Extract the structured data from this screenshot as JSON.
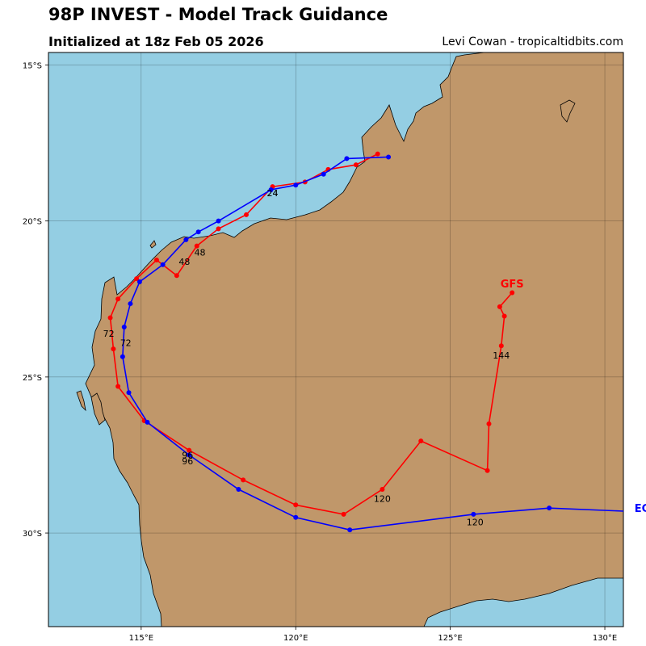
{
  "header": {
    "title": "98P INVEST - Model Track Guidance",
    "subtitle": "Initialized at 18z Feb 05 2026",
    "credit": "Levi Cowan - tropicaltidbits.com"
  },
  "colors": {
    "ocean": "#94CEE3",
    "land": "#C0976A",
    "coast": "#000000",
    "grid": "#000000"
  },
  "chart_data": {
    "type": "map",
    "lon_range": [
      112.0,
      130.6
    ],
    "lat_range": [
      -33.0,
      -14.6
    ],
    "x_ticks": [
      {
        "value": 115,
        "label": "115°E"
      },
      {
        "value": 120,
        "label": "120°E"
      },
      {
        "value": 125,
        "label": "125°E"
      },
      {
        "value": 130,
        "label": "130°E"
      }
    ],
    "y_ticks": [
      {
        "value": -15,
        "label": "15°S"
      },
      {
        "value": -20,
        "label": "20°S"
      },
      {
        "value": -25,
        "label": "25°S"
      },
      {
        "value": -30,
        "label": "30°S"
      }
    ],
    "grid": true,
    "series": [
      {
        "name": "GFS",
        "color": "#FF0000",
        "points": [
          [
            122.65,
            -17.85
          ],
          [
            121.95,
            -18.2
          ],
          [
            121.05,
            -18.35
          ],
          [
            120.3,
            -18.75
          ],
          [
            119.25,
            -18.9
          ],
          [
            118.4,
            -19.8
          ],
          [
            117.5,
            -20.25
          ],
          [
            116.8,
            -20.8
          ],
          [
            116.15,
            -21.75
          ],
          [
            115.5,
            -21.25
          ],
          [
            114.85,
            -21.85
          ],
          [
            114.25,
            -22.5
          ],
          [
            114.0,
            -23.1
          ],
          [
            114.1,
            -24.1
          ],
          [
            114.25,
            -25.3
          ],
          [
            115.1,
            -26.4
          ],
          [
            116.55,
            -27.35
          ],
          [
            118.3,
            -28.3
          ],
          [
            120.0,
            -29.1
          ],
          [
            121.55,
            -29.4
          ],
          [
            122.8,
            -28.6
          ],
          [
            124.05,
            -27.05
          ],
          [
            126.2,
            -28.0
          ],
          [
            126.25,
            -26.5
          ],
          [
            126.65,
            -24.0
          ],
          [
            126.75,
            -23.05
          ],
          [
            126.6,
            -22.75
          ],
          [
            127.0,
            -22.3
          ]
        ],
        "labels": [
          {
            "text": "24",
            "lon": 119.25,
            "lat": -19.1
          },
          {
            "text": "48",
            "lon": 116.4,
            "lat": -21.3
          },
          {
            "text": "72",
            "lon": 113.95,
            "lat": -23.6
          },
          {
            "text": "96",
            "lon": 116.5,
            "lat": -27.7
          },
          {
            "text": "120",
            "lon": 122.8,
            "lat": -28.9
          },
          {
            "text": "144",
            "lon": 126.65,
            "lat": -24.3
          }
        ],
        "model_label": {
          "text": "GFS",
          "lon": 127.0,
          "lat": -22.0
        }
      },
      {
        "name": "EC",
        "color": "#0000FF",
        "points": [
          [
            123.0,
            -17.95
          ],
          [
            121.65,
            -18.0
          ],
          [
            120.9,
            -18.5
          ],
          [
            120.0,
            -18.85
          ],
          [
            119.2,
            -19.0
          ],
          [
            117.5,
            -20.0
          ],
          [
            116.85,
            -20.35
          ],
          [
            116.45,
            -20.6
          ],
          [
            115.7,
            -21.4
          ],
          [
            114.95,
            -21.95
          ],
          [
            114.65,
            -22.65
          ],
          [
            114.45,
            -23.4
          ],
          [
            114.4,
            -24.35
          ],
          [
            114.6,
            -25.5
          ],
          [
            115.2,
            -26.45
          ],
          [
            116.55,
            -27.5
          ],
          [
            118.15,
            -28.6
          ],
          [
            120.0,
            -29.5
          ],
          [
            121.75,
            -29.9
          ],
          [
            125.75,
            -29.4
          ],
          [
            128.2,
            -29.2
          ],
          [
            130.6,
            -29.3
          ]
        ],
        "labels": [
          {
            "text": "24",
            "lon": 119.25,
            "lat": -19.1
          },
          {
            "text": "48",
            "lon": 116.9,
            "lat": -21.0
          },
          {
            "text": "72",
            "lon": 114.5,
            "lat": -23.9
          },
          {
            "text": "96",
            "lon": 116.5,
            "lat": -27.5
          },
          {
            "text": "120",
            "lon": 125.8,
            "lat": -29.65
          }
        ],
        "model_label": {
          "text": "EC",
          "lon": 131.2,
          "lat": -29.2
        }
      }
    ]
  }
}
